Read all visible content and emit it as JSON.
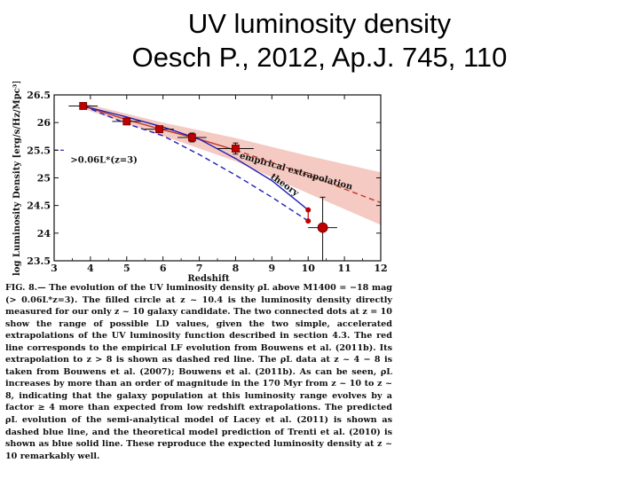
{
  "slide": {
    "title_line1": "UV luminosity density",
    "title_line2": "Oesch P., 2012, Ap.J. 745, 110"
  },
  "chart_data": {
    "type": "scatter",
    "xlabel": "Redshift",
    "ylabel": "log Luminosity Density [erg/s/Hz/Mpc³]",
    "xlim": [
      3,
      12
    ],
    "ylim": [
      23.5,
      26.5
    ],
    "xticks": [
      3,
      4,
      5,
      6,
      7,
      8,
      9,
      10,
      11,
      12
    ],
    "yticks": [
      23.5,
      24,
      24.5,
      25,
      25.5,
      26,
      26.5
    ],
    "annotations": {
      "threshold": ">0.06L*(z=3)",
      "empirical": "empirical extrapolation",
      "theory": "theory"
    },
    "colors": {
      "data": "#c00000",
      "band": "#f2b8ae",
      "empirical": "#c0392b",
      "theory": "#1f1fb4"
    },
    "series": [
      {
        "name": "LD data",
        "points": [
          {
            "x": 3.8,
            "y": 26.3,
            "xerr": 0.4,
            "yerr": 0.05
          },
          {
            "x": 5.0,
            "y": 26.02,
            "xerr": 0.4,
            "yerr": 0.05
          },
          {
            "x": 5.9,
            "y": 25.88,
            "xerr": 0.4,
            "yerr": 0.05
          },
          {
            "x": 6.8,
            "y": 25.73,
            "xerr": 0.4,
            "yerr": 0.08
          },
          {
            "x": 8.0,
            "y": 25.53,
            "xerr": 0.5,
            "yerr": 0.1
          }
        ]
      },
      {
        "name": "z~10.4 candidate",
        "points": [
          {
            "x": 10.4,
            "y": 24.1,
            "xerr": 0.4,
            "yerr_up": 0.55,
            "yerr_down": 0.6
          }
        ]
      },
      {
        "name": "z=10 range",
        "points": [
          {
            "x": 10.0,
            "y": 24.42
          },
          {
            "x": 10.0,
            "y": 24.22
          }
        ]
      },
      {
        "name": "empirical LF evolution",
        "line": [
          [
            3.8,
            26.3
          ],
          [
            5.0,
            26.05
          ],
          [
            6.0,
            25.87
          ],
          [
            7.0,
            25.7
          ],
          [
            8.0,
            25.5
          ]
        ],
        "dashed": [
          [
            8.0,
            25.5
          ],
          [
            9.0,
            25.28
          ],
          [
            10.0,
            25.05
          ],
          [
            11.0,
            24.8
          ],
          [
            12.0,
            24.55
          ]
        ],
        "band_upper": [
          [
            3.8,
            26.35
          ],
          [
            6.0,
            26.0
          ],
          [
            8.0,
            25.72
          ],
          [
            10.0,
            25.4
          ],
          [
            12.0,
            25.1
          ]
        ],
        "band_lower": [
          [
            3.8,
            26.25
          ],
          [
            6.0,
            25.76
          ],
          [
            8.0,
            25.3
          ],
          [
            10.0,
            24.72
          ],
          [
            12.0,
            24.15
          ]
        ]
      },
      {
        "name": "theory (Trenti et al. 2010)",
        "line": [
          [
            3.8,
            26.3
          ],
          [
            5.0,
            26.1
          ],
          [
            6.0,
            25.92
          ],
          [
            7.0,
            25.7
          ],
          [
            8.0,
            25.35
          ],
          [
            9.0,
            24.95
          ],
          [
            10.0,
            24.42
          ]
        ]
      },
      {
        "name": "Lacey et al. (2011)",
        "dashed": [
          [
            3.8,
            26.3
          ],
          [
            5.0,
            25.98
          ],
          [
            6.0,
            25.76
          ],
          [
            7.0,
            25.42
          ],
          [
            8.0,
            25.05
          ],
          [
            9.0,
            24.65
          ],
          [
            10.0,
            24.22
          ]
        ]
      },
      {
        "name": "threshold marker",
        "dashed": [
          [
            3.0,
            25.5
          ],
          [
            3.3,
            25.5
          ]
        ]
      }
    ]
  },
  "caption": {
    "text": "FIG. 8.— The evolution of the UV luminosity density ρL above M1400 = −18 mag (> 0.06L*z=3). The filled circle at z ~ 10.4 is the luminosity density directly measured for our only z ~ 10 galaxy candidate. The two connected dots at z = 10 show the range of possible LD values, given the two simple, accelerated extrapolations of the UV luminosity function described in section 4.3. The red line corresponds to the empirical LF evolution from Bouwens et al. (2011b). Its extrapolation to z > 8 is shown as dashed red line. The ρL data at z ~ 4 − 8 is taken from Bouwens et al. (2007); Bouwens et al. (2011b). As can be seen, ρL increases by more than an order of magnitude in the 170 Myr from z ~ 10 to z ~ 8, indicating that the galaxy population at this luminosity range evolves by a factor ≥ 4 more than expected from low redshift extrapolations. The predicted ρL evolution of the semi-analytical model of Lacey et al. (2011) is shown as dashed blue line, and the theoretical model prediction of Trenti et al. (2010) is shown as blue solid line. These reproduce the expected luminosity density at z ~ 10 remarkably well."
  }
}
